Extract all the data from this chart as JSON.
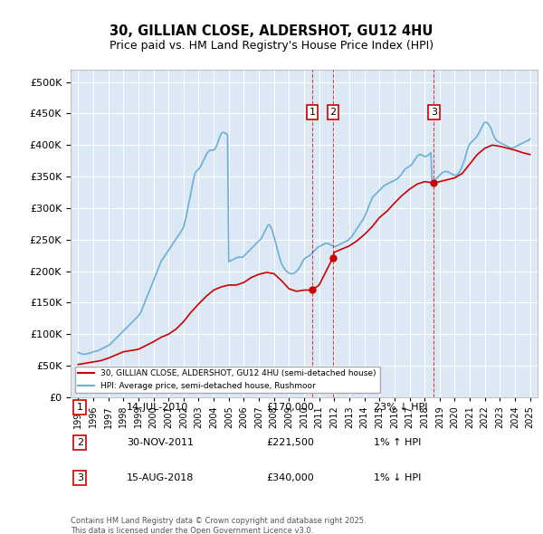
{
  "title1": "30, GILLIAN CLOSE, ALDERSHOT, GU12 4HU",
  "title2": "Price paid vs. HM Land Registry's House Price Index (HPI)",
  "background_color": "#dce9f5",
  "plot_bg_color": "#dce9f5",
  "hpi_color": "#6baed6",
  "price_color": "#cc0000",
  "ylim": [
    0,
    520000
  ],
  "yticks": [
    0,
    50000,
    100000,
    150000,
    200000,
    250000,
    300000,
    350000,
    400000,
    450000,
    500000
  ],
  "legend_label_price": "30, GILLIAN CLOSE, ALDERSHOT, GU12 4HU (semi-detached house)",
  "legend_label_hpi": "HPI: Average price, semi-detached house, Rushmoor",
  "transactions": [
    {
      "num": 1,
      "date": "14-JUL-2010",
      "price": 170000,
      "pct": "23%",
      "dir": "↓",
      "year": 2010.54
    },
    {
      "num": 2,
      "date": "30-NOV-2011",
      "price": 221500,
      "pct": "1%",
      "dir": "↑",
      "year": 2011.92
    },
    {
      "num": 3,
      "date": "15-AUG-2018",
      "price": 340000,
      "pct": "1%",
      "dir": "↓",
      "year": 2018.62
    }
  ],
  "footer": "Contains HM Land Registry data © Crown copyright and database right 2025.\nThis data is licensed under the Open Government Licence v3.0.",
  "hpi_data": {
    "years": [
      1995.0,
      1995.08,
      1995.17,
      1995.25,
      1995.33,
      1995.42,
      1995.5,
      1995.58,
      1995.67,
      1995.75,
      1995.83,
      1995.92,
      1996.0,
      1996.08,
      1996.17,
      1996.25,
      1996.33,
      1996.42,
      1996.5,
      1996.58,
      1996.67,
      1996.75,
      1996.83,
      1996.92,
      1997.0,
      1997.08,
      1997.17,
      1997.25,
      1997.33,
      1997.42,
      1997.5,
      1997.58,
      1997.67,
      1997.75,
      1997.83,
      1997.92,
      1998.0,
      1998.08,
      1998.17,
      1998.25,
      1998.33,
      1998.42,
      1998.5,
      1998.58,
      1998.67,
      1998.75,
      1998.83,
      1998.92,
      1999.0,
      1999.08,
      1999.17,
      1999.25,
      1999.33,
      1999.42,
      1999.5,
      1999.58,
      1999.67,
      1999.75,
      1999.83,
      1999.92,
      2000.0,
      2000.08,
      2000.17,
      2000.25,
      2000.33,
      2000.42,
      2000.5,
      2000.58,
      2000.67,
      2000.75,
      2000.83,
      2000.92,
      2001.0,
      2001.08,
      2001.17,
      2001.25,
      2001.33,
      2001.42,
      2001.5,
      2001.58,
      2001.67,
      2001.75,
      2001.83,
      2001.92,
      2002.0,
      2002.08,
      2002.17,
      2002.25,
      2002.33,
      2002.42,
      2002.5,
      2002.58,
      2002.67,
      2002.75,
      2002.83,
      2002.92,
      2003.0,
      2003.08,
      2003.17,
      2003.25,
      2003.33,
      2003.42,
      2003.5,
      2003.58,
      2003.67,
      2003.75,
      2003.83,
      2003.92,
      2004.0,
      2004.08,
      2004.17,
      2004.25,
      2004.33,
      2004.42,
      2004.5,
      2004.58,
      2004.67,
      2004.75,
      2004.83,
      2004.92,
      2005.0,
      2005.08,
      2005.17,
      2005.25,
      2005.33,
      2005.42,
      2005.5,
      2005.58,
      2005.67,
      2005.75,
      2005.83,
      2005.92,
      2006.0,
      2006.08,
      2006.17,
      2006.25,
      2006.33,
      2006.42,
      2006.5,
      2006.58,
      2006.67,
      2006.75,
      2006.83,
      2006.92,
      2007.0,
      2007.08,
      2007.17,
      2007.25,
      2007.33,
      2007.42,
      2007.5,
      2007.58,
      2007.67,
      2007.75,
      2007.83,
      2007.92,
      2008.0,
      2008.08,
      2008.17,
      2008.25,
      2008.33,
      2008.42,
      2008.5,
      2008.58,
      2008.67,
      2008.75,
      2008.83,
      2008.92,
      2009.0,
      2009.08,
      2009.17,
      2009.25,
      2009.33,
      2009.42,
      2009.5,
      2009.58,
      2009.67,
      2009.75,
      2009.83,
      2009.92,
      2010.0,
      2010.08,
      2010.17,
      2010.25,
      2010.33,
      2010.42,
      2010.5,
      2010.58,
      2010.67,
      2010.75,
      2010.83,
      2010.92,
      2011.0,
      2011.08,
      2011.17,
      2011.25,
      2011.33,
      2011.42,
      2011.5,
      2011.58,
      2011.67,
      2011.75,
      2011.83,
      2011.92,
      2012.0,
      2012.08,
      2012.17,
      2012.25,
      2012.33,
      2012.42,
      2012.5,
      2012.58,
      2012.67,
      2012.75,
      2012.83,
      2012.92,
      2013.0,
      2013.08,
      2013.17,
      2013.25,
      2013.33,
      2013.42,
      2013.5,
      2013.58,
      2013.67,
      2013.75,
      2013.83,
      2013.92,
      2014.0,
      2014.08,
      2014.17,
      2014.25,
      2014.33,
      2014.42,
      2014.5,
      2014.58,
      2014.67,
      2014.75,
      2014.83,
      2014.92,
      2015.0,
      2015.08,
      2015.17,
      2015.25,
      2015.33,
      2015.42,
      2015.5,
      2015.58,
      2015.67,
      2015.75,
      2015.83,
      2015.92,
      2016.0,
      2016.08,
      2016.17,
      2016.25,
      2016.33,
      2016.42,
      2016.5,
      2016.58,
      2016.67,
      2016.75,
      2016.83,
      2016.92,
      2017.0,
      2017.08,
      2017.17,
      2017.25,
      2017.33,
      2017.42,
      2017.5,
      2017.58,
      2017.67,
      2017.75,
      2017.83,
      2017.92,
      2018.0,
      2018.08,
      2018.17,
      2018.25,
      2018.33,
      2018.42,
      2018.5,
      2018.58,
      2018.67,
      2018.75,
      2018.83,
      2018.92,
      2019.0,
      2019.08,
      2019.17,
      2019.25,
      2019.33,
      2019.42,
      2019.5,
      2019.58,
      2019.67,
      2019.75,
      2019.83,
      2019.92,
      2020.0,
      2020.08,
      2020.17,
      2020.25,
      2020.33,
      2020.42,
      2020.5,
      2020.58,
      2020.67,
      2020.75,
      2020.83,
      2020.92,
      2021.0,
      2021.08,
      2021.17,
      2021.25,
      2021.33,
      2021.42,
      2021.5,
      2021.58,
      2021.67,
      2021.75,
      2021.83,
      2021.92,
      2022.0,
      2022.08,
      2022.17,
      2022.25,
      2022.33,
      2022.42,
      2022.5,
      2022.58,
      2022.67,
      2022.75,
      2022.83,
      2022.92,
      2023.0,
      2023.08,
      2023.17,
      2023.25,
      2023.33,
      2023.42,
      2023.5,
      2023.58,
      2023.67,
      2023.75,
      2023.83,
      2023.92,
      2024.0,
      2024.08,
      2024.17,
      2024.25,
      2024.33,
      2024.42,
      2024.5,
      2024.58,
      2024.67,
      2024.75,
      2024.83,
      2024.92,
      2025.0
    ],
    "values": [
      71000,
      70000,
      69500,
      69000,
      68500,
      68000,
      68500,
      69000,
      69500,
      70000,
      70500,
      71000,
      72000,
      72500,
      73000,
      73500,
      74000,
      75000,
      76000,
      77000,
      78000,
      79000,
      80000,
      81000,
      82000,
      83000,
      85000,
      87000,
      89000,
      91000,
      93000,
      95000,
      97000,
      99000,
      101000,
      103000,
      105000,
      107000,
      109000,
      111000,
      113000,
      115000,
      117000,
      119000,
      121000,
      123000,
      125000,
      127000,
      129000,
      132000,
      135000,
      140000,
      145000,
      150000,
      155000,
      160000,
      165000,
      170000,
      175000,
      180000,
      185000,
      190000,
      195000,
      200000,
      205000,
      210000,
      215000,
      218000,
      221000,
      224000,
      227000,
      230000,
      233000,
      236000,
      239000,
      242000,
      245000,
      248000,
      251000,
      254000,
      257000,
      260000,
      263000,
      266000,
      270000,
      278000,
      286000,
      296000,
      306000,
      316000,
      326000,
      336000,
      346000,
      354000,
      358000,
      360000,
      362000,
      364000,
      368000,
      372000,
      376000,
      380000,
      384000,
      388000,
      390000,
      392000,
      392000,
      392000,
      392000,
      394000,
      398000,
      402000,
      408000,
      414000,
      418000,
      420000,
      420000,
      419000,
      418000,
      416000,
      215000,
      216000,
      217000,
      218000,
      219000,
      220000,
      221000,
      222000,
      222000,
      222000,
      222000,
      222000,
      224000,
      226000,
      228000,
      230000,
      232000,
      234000,
      236000,
      238000,
      240000,
      242000,
      244000,
      246000,
      248000,
      250000,
      252000,
      256000,
      260000,
      264000,
      268000,
      272000,
      274000,
      272000,
      268000,
      262000,
      255000,
      248000,
      240000,
      232000,
      225000,
      218000,
      212000,
      208000,
      205000,
      202000,
      200000,
      198000,
      197000,
      196000,
      196000,
      196000,
      197000,
      198000,
      200000,
      202000,
      205000,
      208000,
      212000,
      216000,
      219000,
      221000,
      222000,
      223000,
      224000,
      226000,
      228000,
      230000,
      232000,
      234000,
      236000,
      238000,
      239000,
      240000,
      241000,
      242000,
      243000,
      244000,
      244000,
      244000,
      243000,
      242000,
      241000,
      240000,
      239000,
      239000,
      240000,
      241000,
      242000,
      243000,
      244000,
      245000,
      246000,
      247000,
      248000,
      249000,
      251000,
      253000,
      255000,
      258000,
      261000,
      264000,
      267000,
      270000,
      273000,
      276000,
      279000,
      282000,
      286000,
      290000,
      295000,
      300000,
      305000,
      310000,
      315000,
      318000,
      320000,
      322000,
      324000,
      326000,
      328000,
      330000,
      332000,
      334000,
      336000,
      337000,
      338000,
      339000,
      340000,
      341000,
      342000,
      343000,
      344000,
      345000,
      346000,
      348000,
      350000,
      352000,
      355000,
      358000,
      361000,
      363000,
      364000,
      365000,
      366000,
      368000,
      370000,
      373000,
      376000,
      379000,
      382000,
      384000,
      385000,
      385000,
      384000,
      383000,
      382000,
      382000,
      383000,
      384000,
      386000,
      388000,
      340000,
      342000,
      344000,
      346000,
      348000,
      350000,
      352000,
      354000,
      356000,
      357000,
      358000,
      358000,
      358000,
      357000,
      356000,
      355000,
      354000,
      353000,
      352000,
      352000,
      353000,
      355000,
      358000,
      362000,
      367000,
      372000,
      378000,
      385000,
      392000,
      398000,
      402000,
      404000,
      406000,
      408000,
      410000,
      412000,
      415000,
      418000,
      422000,
      426000,
      430000,
      434000,
      436000,
      436000,
      435000,
      433000,
      430000,
      426000,
      420000,
      415000,
      411000,
      408000,
      406000,
      405000,
      404000,
      403000,
      402000,
      401000,
      400000,
      399000,
      398000,
      397000,
      396000,
      395000,
      395000,
      396000,
      397000,
      398000,
      399000,
      400000,
      401000,
      402000,
      403000,
      404000,
      405000,
      406000,
      407000,
      408000,
      410000
    ]
  },
  "price_data": {
    "years": [
      1995.0,
      1995.5,
      1996.0,
      1996.5,
      1997.0,
      1997.5,
      1998.0,
      1998.5,
      1999.0,
      1999.5,
      2000.0,
      2000.5,
      2001.0,
      2001.5,
      2002.0,
      2002.5,
      2003.0,
      2003.5,
      2004.0,
      2004.5,
      2005.0,
      2005.5,
      2006.0,
      2006.5,
      2007.0,
      2007.5,
      2008.0,
      2008.5,
      2009.0,
      2009.5,
      2010.0,
      2010.54,
      2011.0,
      2011.92,
      2012.0,
      2012.5,
      2013.0,
      2013.5,
      2014.0,
      2014.5,
      2015.0,
      2015.5,
      2016.0,
      2016.5,
      2017.0,
      2017.5,
      2018.0,
      2018.62,
      2019.0,
      2019.5,
      2020.0,
      2020.5,
      2021.0,
      2021.5,
      2022.0,
      2022.5,
      2023.0,
      2023.5,
      2024.0,
      2024.5,
      2025.0
    ],
    "values": [
      52000,
      54000,
      56000,
      58000,
      62000,
      67000,
      72000,
      74000,
      76000,
      82000,
      88000,
      95000,
      100000,
      108000,
      120000,
      135000,
      148000,
      160000,
      170000,
      175000,
      178000,
      178000,
      182000,
      190000,
      195000,
      198000,
      196000,
      185000,
      172000,
      168000,
      170000,
      170000,
      178000,
      221500,
      230000,
      235000,
      240000,
      248000,
      258000,
      270000,
      285000,
      295000,
      308000,
      320000,
      330000,
      338000,
      342000,
      340000,
      342000,
      345000,
      348000,
      355000,
      370000,
      385000,
      395000,
      400000,
      398000,
      395000,
      392000,
      388000,
      385000
    ]
  }
}
